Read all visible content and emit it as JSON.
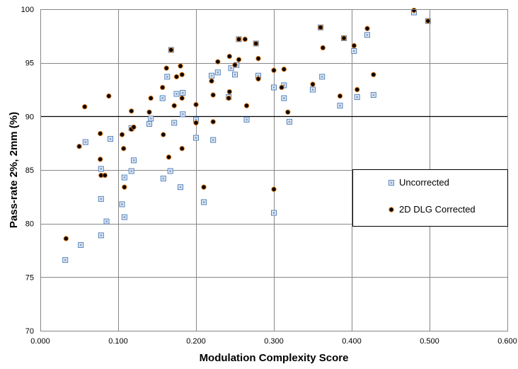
{
  "chart_data": {
    "type": "scatter",
    "title": "",
    "xlabel": "Modulation Complexity Score",
    "ylabel": "Pass-rate 2%, 2mm (%)",
    "xlim": [
      0.0,
      0.6
    ],
    "ylim": [
      70,
      100
    ],
    "x_ticks": [
      "0.000",
      "0.100",
      "0.200",
      "0.300",
      "0.400",
      "0.500",
      "0.600"
    ],
    "y_ticks": [
      "70",
      "75",
      "80",
      "85",
      "90",
      "95",
      "100"
    ],
    "grid": "both",
    "reference_line_y": 90,
    "legend_position": "right",
    "colors": {
      "uncorrected": "#4f81bd",
      "corrected": "#7a1a0c",
      "grid": "#868686",
      "reference_line": "#000000"
    },
    "series": [
      {
        "name": "Uncorrected",
        "marker": "square",
        "points": [
          [
            0.032,
            76.6
          ],
          [
            0.052,
            78.0
          ],
          [
            0.058,
            87.6
          ],
          [
            0.078,
            85.1
          ],
          [
            0.078,
            82.3
          ],
          [
            0.078,
            78.9
          ],
          [
            0.085,
            80.2
          ],
          [
            0.09,
            87.9
          ],
          [
            0.105,
            81.8
          ],
          [
            0.108,
            84.3
          ],
          [
            0.108,
            80.6
          ],
          [
            0.117,
            88.9
          ],
          [
            0.117,
            84.9
          ],
          [
            0.12,
            85.9
          ],
          [
            0.14,
            89.3
          ],
          [
            0.142,
            89.8
          ],
          [
            0.157,
            91.7
          ],
          [
            0.158,
            84.2
          ],
          [
            0.163,
            93.7
          ],
          [
            0.167,
            84.9
          ],
          [
            0.168,
            96.2
          ],
          [
            0.172,
            89.4
          ],
          [
            0.175,
            92.1
          ],
          [
            0.18,
            83.4
          ],
          [
            0.183,
            92.2
          ],
          [
            0.183,
            90.2
          ],
          [
            0.2,
            89.7
          ],
          [
            0.2,
            88.0
          ],
          [
            0.21,
            82.0
          ],
          [
            0.22,
            93.8
          ],
          [
            0.222,
            87.8
          ],
          [
            0.228,
            94.1
          ],
          [
            0.242,
            91.8
          ],
          [
            0.245,
            94.5
          ],
          [
            0.25,
            93.9
          ],
          [
            0.252,
            94.8
          ],
          [
            0.255,
            97.2
          ],
          [
            0.265,
            89.7
          ],
          [
            0.277,
            96.8
          ],
          [
            0.28,
            93.8
          ],
          [
            0.3,
            92.7
          ],
          [
            0.3,
            81.0
          ],
          [
            0.313,
            91.7
          ],
          [
            0.313,
            92.9
          ],
          [
            0.32,
            89.5
          ],
          [
            0.35,
            92.5
          ],
          [
            0.36,
            98.3
          ],
          [
            0.362,
            93.7
          ],
          [
            0.385,
            91.0
          ],
          [
            0.39,
            97.3
          ],
          [
            0.403,
            96.1
          ],
          [
            0.407,
            91.8
          ],
          [
            0.42,
            97.6
          ],
          [
            0.428,
            92.0
          ],
          [
            0.48,
            99.7
          ],
          [
            0.498,
            98.9
          ]
        ]
      },
      {
        "name": "2D DLG Corrected",
        "marker": "circle",
        "points": [
          [
            0.033,
            78.6
          ],
          [
            0.05,
            87.2
          ],
          [
            0.057,
            90.9
          ],
          [
            0.077,
            88.4
          ],
          [
            0.077,
            86.0
          ],
          [
            0.078,
            84.5
          ],
          [
            0.083,
            84.5
          ],
          [
            0.088,
            91.9
          ],
          [
            0.105,
            88.3
          ],
          [
            0.107,
            87.0
          ],
          [
            0.108,
            83.4
          ],
          [
            0.117,
            90.5
          ],
          [
            0.117,
            88.8
          ],
          [
            0.12,
            89.0
          ],
          [
            0.14,
            90.4
          ],
          [
            0.142,
            91.7
          ],
          [
            0.157,
            92.7
          ],
          [
            0.158,
            88.3
          ],
          [
            0.162,
            94.5
          ],
          [
            0.165,
            86.2
          ],
          [
            0.168,
            96.2
          ],
          [
            0.172,
            91.0
          ],
          [
            0.175,
            93.7
          ],
          [
            0.18,
            94.7
          ],
          [
            0.182,
            93.9
          ],
          [
            0.182,
            91.7
          ],
          [
            0.182,
            87.0
          ],
          [
            0.2,
            91.1
          ],
          [
            0.2,
            89.4
          ],
          [
            0.21,
            83.4
          ],
          [
            0.22,
            93.3
          ],
          [
            0.222,
            92.0
          ],
          [
            0.222,
            89.5
          ],
          [
            0.228,
            95.1
          ],
          [
            0.242,
            91.7
          ],
          [
            0.243,
            92.3
          ],
          [
            0.243,
            95.6
          ],
          [
            0.25,
            94.8
          ],
          [
            0.255,
            95.3
          ],
          [
            0.255,
            97.2
          ],
          [
            0.263,
            97.2
          ],
          [
            0.265,
            91.0
          ],
          [
            0.277,
            96.8
          ],
          [
            0.28,
            95.4
          ],
          [
            0.28,
            93.5
          ],
          [
            0.3,
            94.3
          ],
          [
            0.3,
            83.2
          ],
          [
            0.31,
            92.7
          ],
          [
            0.313,
            94.4
          ],
          [
            0.318,
            90.4
          ],
          [
            0.35,
            93.0
          ],
          [
            0.36,
            98.3
          ],
          [
            0.363,
            96.4
          ],
          [
            0.385,
            91.9
          ],
          [
            0.39,
            97.3
          ],
          [
            0.403,
            96.6
          ],
          [
            0.407,
            92.5
          ],
          [
            0.42,
            98.2
          ],
          [
            0.428,
            93.9
          ],
          [
            0.48,
            99.9
          ],
          [
            0.498,
            98.9
          ]
        ]
      }
    ]
  }
}
